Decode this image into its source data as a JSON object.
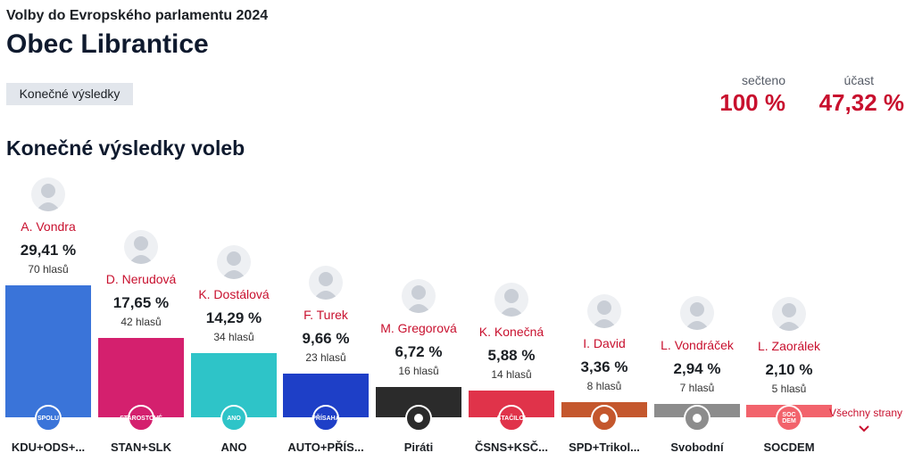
{
  "header": {
    "subtitle": "Volby do Evropského parlamentu 2024",
    "title": "Obec Librantice",
    "status_tag": "Konečné výsledky"
  },
  "stats": {
    "counted_label": "sečteno",
    "counted_value": "100 %",
    "turnout_label": "účast",
    "turnout_value": "47,32 %"
  },
  "section_title": "Konečné výsledky voleb",
  "more_link": "Všechny strany",
  "chart_data": {
    "type": "bar",
    "categories": [
      "KDU+ODS+...",
      "STAN+SLK",
      "ANO",
      "AUTO+PŘÍS...",
      "Piráti",
      "ČSNS+KSČ...",
      "SPD+Trikol...",
      "Svobodní",
      "SOCDEM"
    ],
    "candidates": [
      "A. Vondra",
      "D. Nerudová",
      "K. Dostálová",
      "F. Turek",
      "M. Gregorová",
      "K. Konečná",
      "I. David",
      "L. Vondráček",
      "L. Zaorálek"
    ],
    "values": [
      29.41,
      17.65,
      14.29,
      9.66,
      6.72,
      5.88,
      3.36,
      2.94,
      2.1
    ],
    "value_labels": [
      "29,41 %",
      "17,65 %",
      "14,29 %",
      "9,66 %",
      "6,72 %",
      "5,88 %",
      "3,36 %",
      "2,94 %",
      "2,10 %"
    ],
    "votes_labels": [
      "70 hlasů",
      "42 hlasů",
      "34 hlasů",
      "23 hlasů",
      "16 hlasů",
      "14 hlasů",
      "8 hlasů",
      "7 hlasů",
      "5 hlasů"
    ],
    "logo_texts": [
      "SPOLU",
      "STAROSTOVÉ",
      "ANO",
      "PŘÍSAHA",
      "",
      "STAČILO!",
      "",
      "",
      "SOC DEM"
    ],
    "colors": [
      "#3a74d9",
      "#d4206e",
      "#2ec4c8",
      "#1e3fc7",
      "#2b2b2b",
      "#e0334a",
      "#c4572d",
      "#8c8c8c",
      "#f2636c"
    ],
    "icons": [
      "spolu-logo-icon",
      "starostove-logo-icon",
      "ano-logo-icon",
      "prisaha-logo-icon",
      "pirati-logo-icon",
      "stacilo-logo-icon",
      "spd-logo-icon",
      "svobodni-logo-icon",
      "socdem-logo-icon"
    ],
    "ylim": [
      0,
      29.41
    ]
  }
}
